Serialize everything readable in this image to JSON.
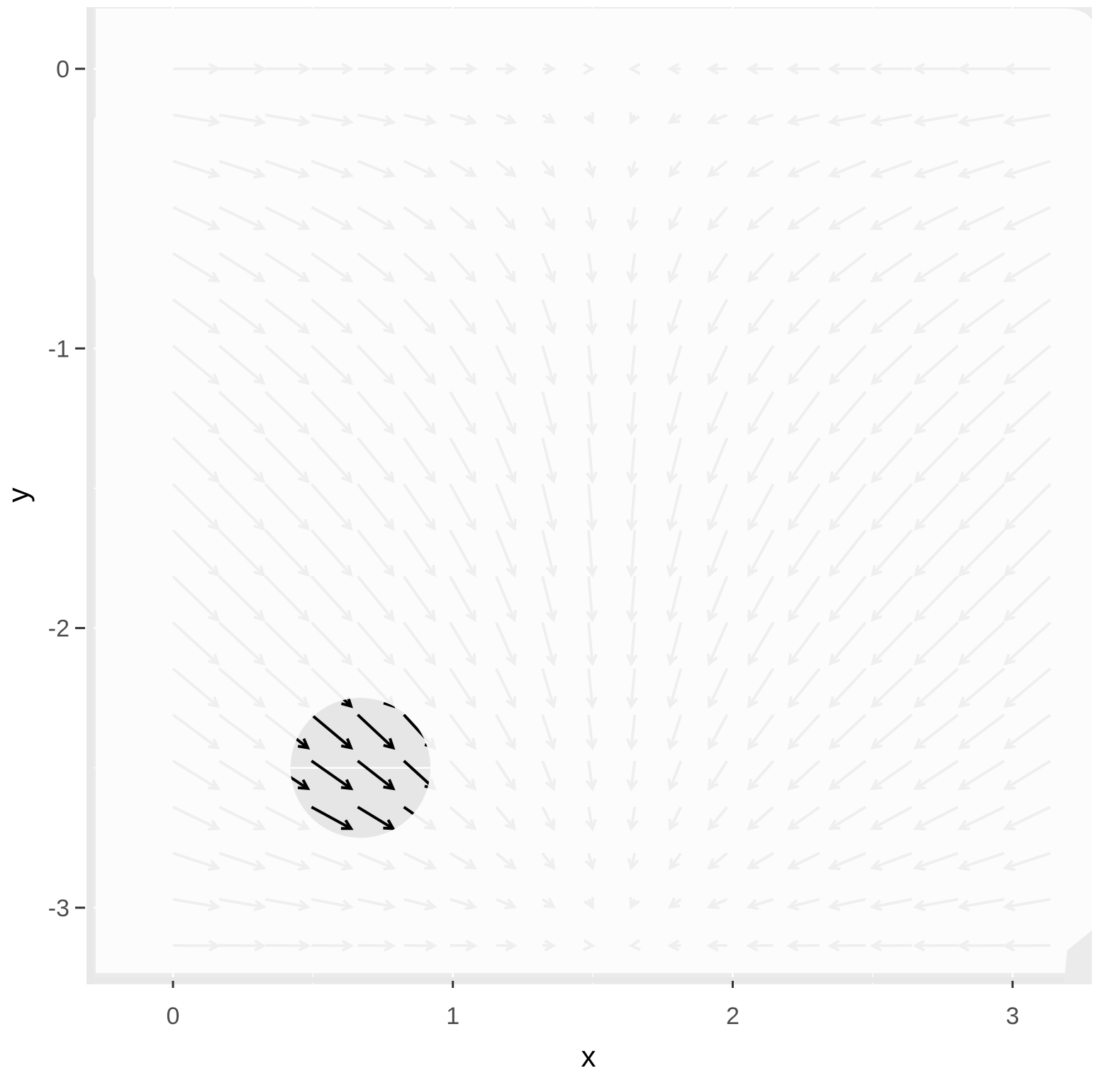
{
  "chart_data": {
    "type": "vector_field",
    "xlabel": "x",
    "ylabel": "y",
    "xlim": [
      -0.3,
      3.3
    ],
    "ylim": [
      -3.3,
      0.22
    ],
    "x_ticks": [
      "0",
      "1",
      "2",
      "3"
    ],
    "y_ticks": [
      "0",
      "-1",
      "-2",
      "-3"
    ],
    "x_tick_values": [
      0,
      1,
      2,
      3
    ],
    "y_tick_values": [
      0,
      -1,
      -2,
      -3
    ],
    "grid": "x 0 to 3.14 step 0.165; y 0 to -3.14 step 0.165",
    "field": "(cos x, sin y)",
    "highlight": {
      "center_x": 0.67,
      "center_y": -2.5,
      "radius": 0.25
    },
    "colors": {
      "panel": "#ebebeb",
      "panel_faded": "#fcfcfc",
      "arrow_faded": "#efefef",
      "arrow_highlight": "#000000",
      "highlight_fill": "#e6e6e6",
      "grid": "#ffffff"
    }
  }
}
